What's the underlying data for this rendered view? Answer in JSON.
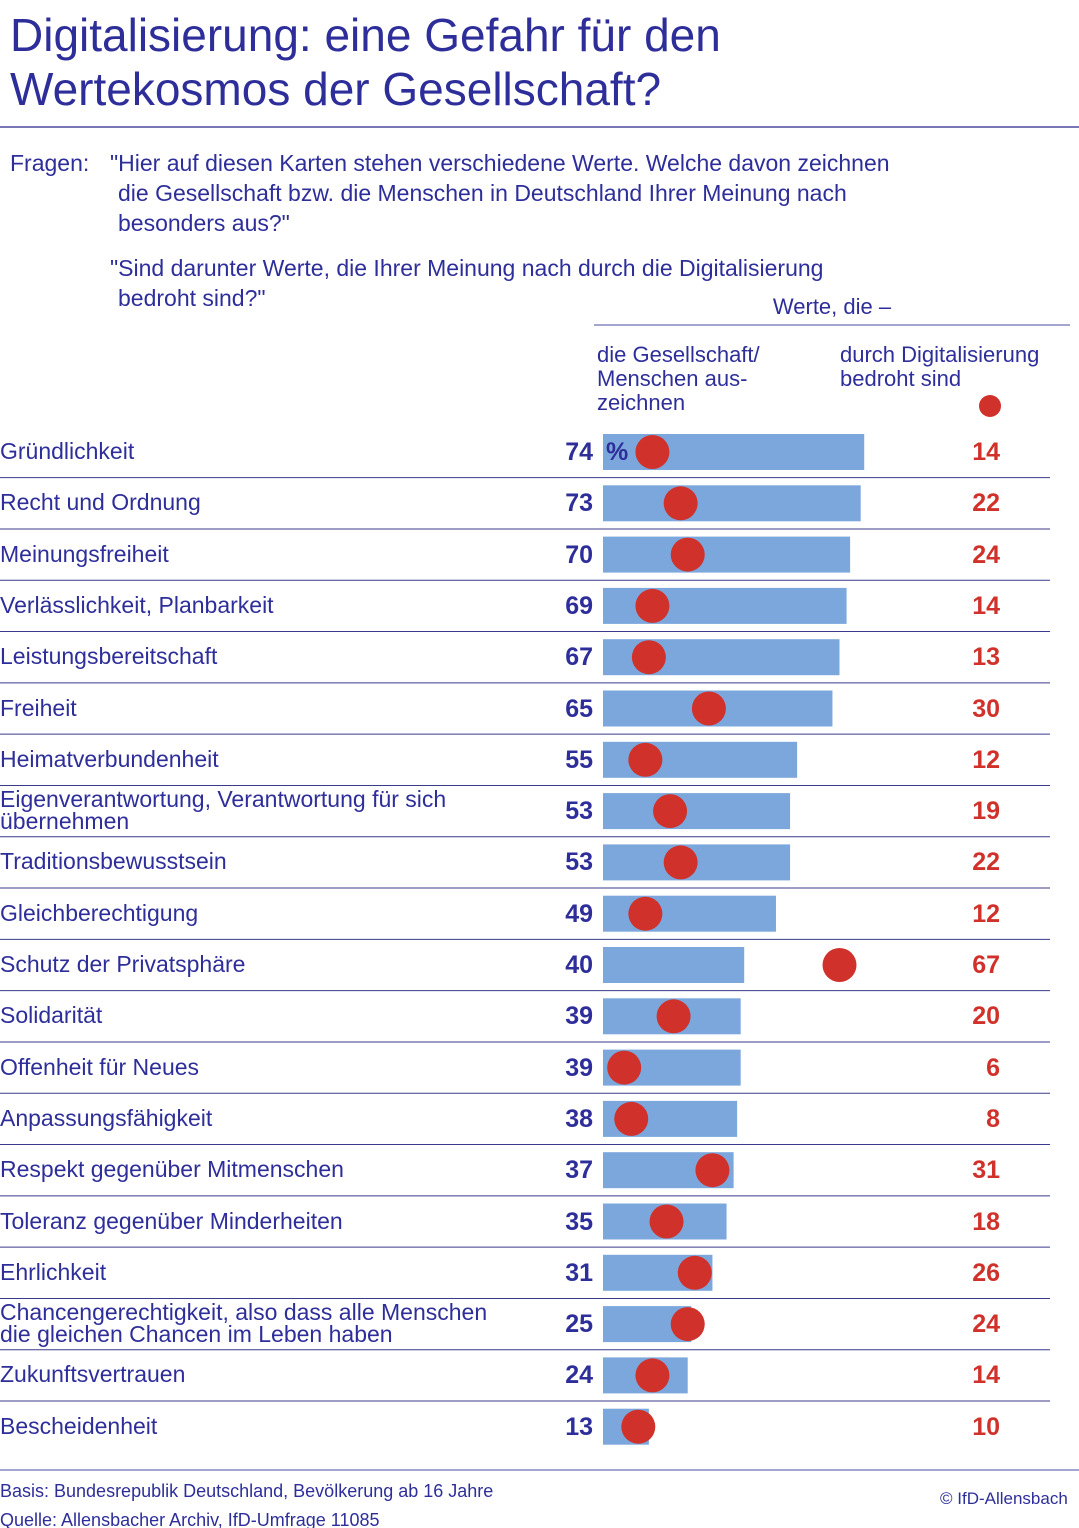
{
  "title": "Digitalisierung: eine Gefahr für den\nWertekosmos der Gesellschaft?",
  "questions_label": "Fragen:",
  "questions": [
    "\"Hier auf diesen Karten stehen verschiedene Werte. Welche davon zeichnen\ndie Gesellschaft bzw. die Menschen in Deutschland Ihrer Meinung nach\nbesonders aus?\"",
    "\"Sind darunter Werte, die Ihrer Meinung nach durch die Digitalisierung\nbedroht sind?\""
  ],
  "chart_data": {
    "type": "bar",
    "group_label": "Werte, die –",
    "unit_label": "%",
    "xlim": [
      0,
      100
    ],
    "categories": [
      "Gründlichkeit",
      "Recht und Ordnung",
      "Meinungsfreiheit",
      "Verlässlichkeit, Planbarkeit",
      "Leistungsbereitschaft",
      "Freiheit",
      "Heimatverbundenheit",
      "Eigenverantwortung, Verantwortung für sich\nübernehmen",
      "Traditionsbewusstsein",
      "Gleichberechtigung",
      "Schutz der Privatsphäre",
      "Solidarität",
      "Offenheit für Neues",
      "Anpassungsfähigkeit",
      "Respekt gegenüber Mitmenschen",
      "Toleranz gegenüber Minderheiten",
      "Ehrlichkeit",
      "Chancengerechtigkeit, also dass alle Menschen\ndie gleichen Chancen im Leben haben",
      "Zukunftsvertrauen",
      "Bescheidenheit"
    ],
    "series": [
      {
        "name": "die Gesellschaft/\nMenschen aus-\nzeichnen",
        "color": "#7ba7dc",
        "values": [
          74,
          73,
          70,
          69,
          67,
          65,
          55,
          53,
          53,
          49,
          40,
          39,
          39,
          38,
          37,
          35,
          31,
          25,
          24,
          13
        ]
      },
      {
        "name": "durch Digitalisierung\nbedroht sind",
        "color": "#d0322b",
        "values": [
          14,
          22,
          24,
          14,
          13,
          30,
          12,
          19,
          22,
          12,
          67,
          20,
          6,
          8,
          31,
          18,
          26,
          24,
          14,
          10
        ]
      }
    ]
  },
  "footer": {
    "notes": [
      "Basis: Bundesrepublik Deutschland, Bevölkerung ab 16 Jahre",
      "Quelle: Allensbacher Archiv, IfD-Umfrage 11085"
    ],
    "copyright": "© IfD-Allensbach"
  }
}
